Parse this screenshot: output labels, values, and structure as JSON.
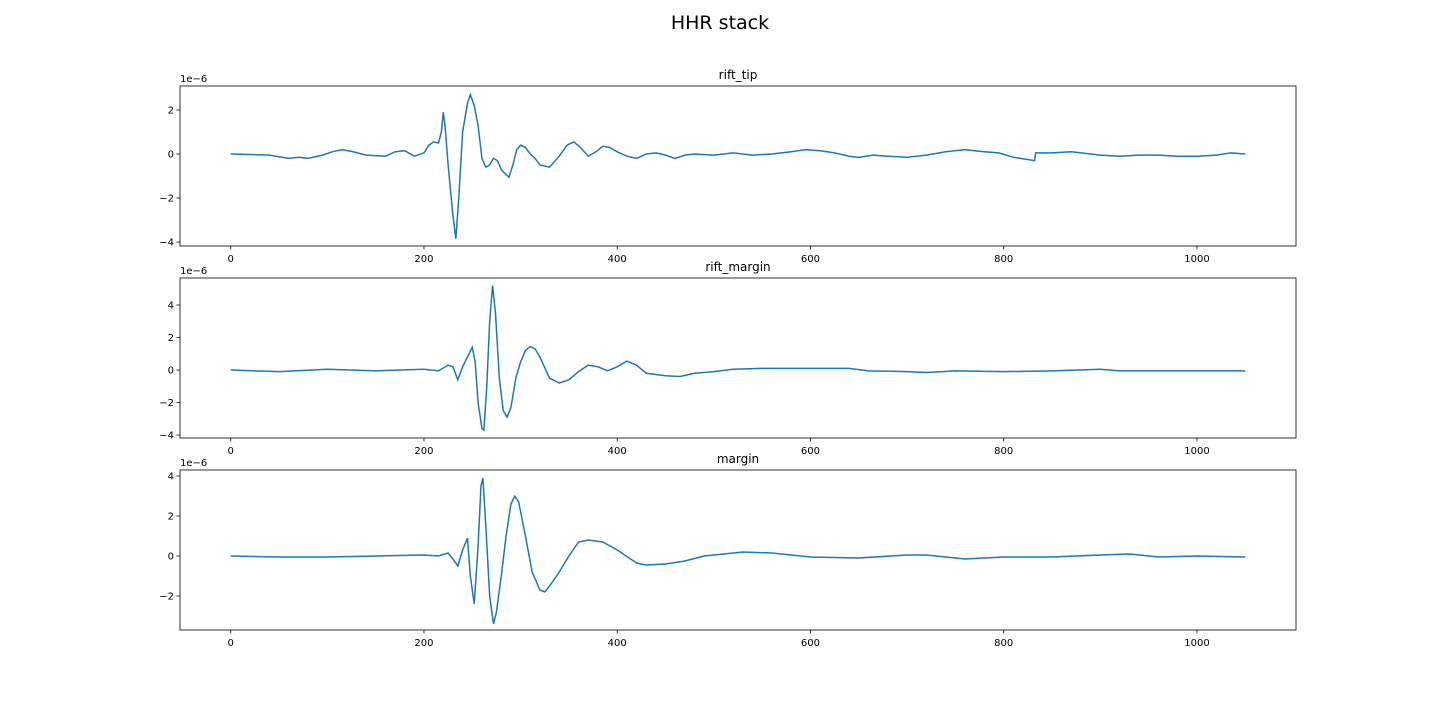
{
  "title": "HHR stack",
  "chart_data": [
    {
      "type": "line",
      "title": "rift_tip",
      "y_offset_label": "1e−6",
      "xlim": [
        -52.5,
        1102.5
      ],
      "xticks": [
        0,
        200,
        400,
        600,
        800,
        1000
      ],
      "ylim": [
        -4.18,
        3.09
      ],
      "yticks": [
        {
          "value": -4,
          "label": "−4"
        },
        {
          "value": -2,
          "label": "−2"
        },
        0,
        2
      ],
      "x": [
        0,
        20,
        40,
        60,
        70,
        80,
        95,
        105,
        115,
        125,
        140,
        160,
        170,
        180,
        190,
        200,
        205,
        210,
        215,
        218,
        220,
        222,
        225,
        230,
        233,
        236,
        240,
        245,
        248,
        252,
        256,
        260,
        264,
        268,
        272,
        276,
        280,
        284,
        288,
        292,
        296,
        300,
        305,
        310,
        315,
        320,
        330,
        340,
        348,
        355,
        362,
        370,
        378,
        385,
        392,
        400,
        410,
        420,
        430,
        440,
        450,
        460,
        470,
        480,
        500,
        520,
        540,
        560,
        580,
        595,
        610,
        625,
        640,
        650,
        665,
        680,
        700,
        720,
        740,
        760,
        770,
        780,
        795,
        810,
        825,
        832,
        833,
        850,
        870,
        900,
        920,
        940,
        960,
        980,
        1000,
        1020,
        1035,
        1050
      ],
      "series": [
        {
          "name": "rift_tip",
          "color": "#1f77b4",
          "values": [
            0,
            -0.02,
            -0.05,
            -0.2,
            -0.15,
            -0.2,
            -0.05,
            0.1,
            0.2,
            0.12,
            -0.05,
            -0.1,
            0.1,
            0.15,
            -0.1,
            0.05,
            0.4,
            0.55,
            0.5,
            1.0,
            1.9,
            1.2,
            -0.5,
            -2.8,
            -3.85,
            -2.0,
            1.0,
            2.3,
            2.7,
            2.2,
            1.3,
            -0.2,
            -0.6,
            -0.5,
            -0.2,
            -0.3,
            -0.7,
            -0.9,
            -1.05,
            -0.5,
            0.2,
            0.4,
            0.3,
            0.0,
            -0.2,
            -0.5,
            -0.6,
            -0.1,
            0.4,
            0.55,
            0.3,
            -0.1,
            0.1,
            0.35,
            0.3,
            0.1,
            -0.1,
            -0.2,
            0.0,
            0.05,
            -0.05,
            -0.2,
            -0.05,
            0.0,
            -0.05,
            0.05,
            -0.05,
            0.0,
            0.1,
            0.2,
            0.15,
            0.05,
            -0.1,
            -0.15,
            -0.05,
            -0.1,
            -0.15,
            -0.05,
            0.1,
            0.2,
            0.15,
            0.1,
            0.05,
            -0.15,
            -0.25,
            -0.3,
            0.05,
            0.05,
            0.1,
            -0.05,
            -0.1,
            -0.05,
            -0.05,
            -0.1,
            -0.1,
            -0.05,
            0.05,
            0.0
          ]
        }
      ]
    },
    {
      "type": "line",
      "title": "rift_margin",
      "y_offset_label": "1e−6",
      "xlim": [
        -52.5,
        1102.5
      ],
      "xticks": [
        0,
        200,
        400,
        600,
        800,
        1000
      ],
      "ylim": [
        -4.18,
        5.66
      ],
      "yticks": [
        {
          "value": -4,
          "label": "−4"
        },
        {
          "value": -2,
          "label": "−2"
        },
        0,
        2,
        4
      ],
      "x": [
        0,
        50,
        100,
        150,
        200,
        215,
        225,
        230,
        235,
        240,
        245,
        250,
        253,
        256,
        260,
        262,
        265,
        268,
        271,
        274,
        278,
        282,
        286,
        290,
        295,
        300,
        305,
        310,
        315,
        320,
        330,
        340,
        350,
        360,
        370,
        380,
        390,
        400,
        410,
        420,
        430,
        450,
        465,
        480,
        500,
        520,
        550,
        600,
        640,
        660,
        700,
        720,
        750,
        800,
        850,
        900,
        920,
        960,
        1000,
        1050
      ],
      "series": [
        {
          "name": "rift_margin",
          "color": "#1f77b4",
          "values": [
            0,
            -0.1,
            0.05,
            -0.05,
            0.05,
            -0.05,
            0.3,
            0.2,
            -0.6,
            0.2,
            0.8,
            1.4,
            0.5,
            -2.0,
            -3.6,
            -3.7,
            -1.0,
            3.0,
            5.2,
            3.5,
            -0.5,
            -2.5,
            -2.9,
            -2.3,
            -0.5,
            0.5,
            1.2,
            1.45,
            1.3,
            0.8,
            -0.5,
            -0.8,
            -0.6,
            -0.1,
            0.3,
            0.2,
            -0.05,
            0.2,
            0.55,
            0.3,
            -0.2,
            -0.35,
            -0.4,
            -0.2,
            -0.1,
            0.05,
            0.1,
            0.1,
            0.1,
            -0.05,
            -0.1,
            -0.15,
            -0.05,
            -0.1,
            -0.05,
            0.05,
            -0.05,
            -0.05,
            -0.05,
            -0.05
          ]
        }
      ]
    },
    {
      "type": "line",
      "title": "margin",
      "y_offset_label": "1e−6",
      "xlim": [
        -52.5,
        1102.5
      ],
      "xticks": [
        0,
        200,
        400,
        600,
        800,
        1000
      ],
      "ylim": [
        -3.7,
        4.3
      ],
      "yticks": [
        {
          "value": -2,
          "label": "−2"
        },
        0,
        2,
        4
      ],
      "x": [
        0,
        50,
        100,
        150,
        200,
        215,
        225,
        230,
        235,
        240,
        245,
        248,
        252,
        256,
        259,
        261,
        264,
        268,
        272,
        275,
        280,
        285,
        290,
        294,
        298,
        305,
        312,
        320,
        325,
        330,
        340,
        350,
        360,
        370,
        385,
        400,
        420,
        430,
        450,
        470,
        490,
        510,
        530,
        560,
        600,
        650,
        700,
        720,
        760,
        800,
        850,
        900,
        930,
        960,
        1000,
        1050
      ],
      "series": [
        {
          "name": "margin",
          "color": "#1f77b4",
          "values": [
            0,
            -0.05,
            -0.05,
            0.0,
            0.05,
            0.0,
            0.15,
            -0.15,
            -0.5,
            0.3,
            0.9,
            -1.0,
            -2.4,
            0.5,
            3.5,
            3.9,
            1.5,
            -2.0,
            -3.4,
            -2.8,
            -1.0,
            1.0,
            2.6,
            3.0,
            2.7,
            1.0,
            -0.8,
            -1.7,
            -1.8,
            -1.5,
            -0.8,
            0.0,
            0.7,
            0.8,
            0.7,
            0.3,
            -0.35,
            -0.45,
            -0.4,
            -0.25,
            0.0,
            0.1,
            0.2,
            0.15,
            -0.05,
            -0.1,
            0.05,
            0.05,
            -0.15,
            -0.05,
            -0.05,
            0.05,
            0.1,
            -0.05,
            0.0,
            -0.05
          ]
        }
      ]
    }
  ]
}
